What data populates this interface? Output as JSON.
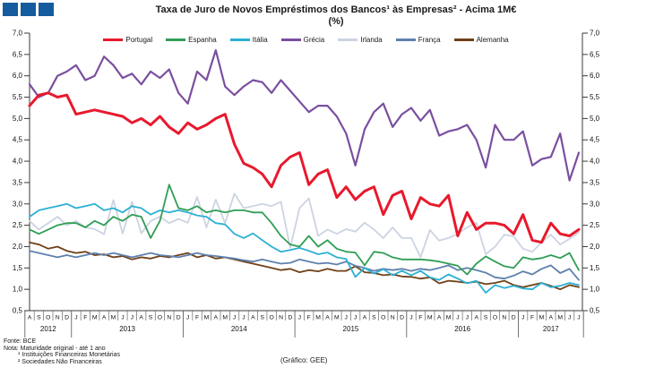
{
  "logo": {
    "color": "#155b9e",
    "squares": 3
  },
  "title": "Taxa de Juro de Novos Empréstimos dos Bancos¹ às Empresas² - Acima 1M€",
  "subtitle": "(%)",
  "footer": {
    "lines": [
      "Fonte: BCE",
      "Nota: Maturidade original - até 1 ano",
      "¹ Instituições Financeiras Monetárias",
      "² Sociedades Não Financeiras"
    ],
    "credit": "(Gráfico: GEE)"
  },
  "chart_data": {
    "type": "line",
    "title": "Taxa de Juro de Novos Empréstimos dos Bancos às Empresas - Acima 1M€",
    "subtitle": "(%)",
    "xlabel": "",
    "ylabel": "",
    "ylim": [
      0.5,
      7.0
    ],
    "ytick_step": 0.5,
    "ytick_labels": [
      "0,5",
      "1,0",
      "1,5",
      "2,0",
      "2,5",
      "3,0",
      "3,5",
      "4,0",
      "4,5",
      "5,0",
      "5,5",
      "6,0",
      "6,5",
      "7,0"
    ],
    "grid": false,
    "legend_position": "top",
    "x_months": [
      "A",
      "S",
      "O",
      "N",
      "D",
      "J",
      "F",
      "M",
      "A",
      "M",
      "J",
      "J",
      "A",
      "S",
      "O",
      "N",
      "D",
      "J",
      "F",
      "M",
      "A",
      "M",
      "J",
      "J",
      "A",
      "S",
      "O",
      "N",
      "D",
      "J",
      "F",
      "M",
      "A",
      "M",
      "J",
      "J",
      "A",
      "S",
      "O",
      "N",
      "D",
      "J",
      "F",
      "M",
      "A",
      "M",
      "J",
      "J",
      "A",
      "S",
      "O",
      "N",
      "D",
      "J",
      "F",
      "M",
      "A",
      "M",
      "J",
      "J"
    ],
    "x_years": [
      {
        "label": "2012",
        "start": 0,
        "end": 4
      },
      {
        "label": "2013",
        "start": 5,
        "end": 16
      },
      {
        "label": "2014",
        "start": 17,
        "end": 28
      },
      {
        "label": "2015",
        "start": 29,
        "end": 40
      },
      {
        "label": "2016",
        "start": 41,
        "end": 52
      },
      {
        "label": "2017",
        "start": 53,
        "end": 59
      }
    ],
    "series": [
      {
        "name": "Portugal",
        "color": "#e8192c",
        "line_width": 3,
        "values": [
          5.3,
          5.55,
          5.6,
          5.5,
          5.55,
          5.1,
          5.15,
          5.2,
          5.15,
          5.1,
          5.05,
          4.9,
          5.0,
          4.85,
          5.05,
          4.8,
          4.65,
          4.9,
          4.75,
          4.85,
          5.0,
          5.1,
          4.4,
          3.95,
          3.85,
          3.7,
          3.4,
          3.9,
          4.1,
          4.2,
          3.45,
          3.7,
          3.8,
          3.15,
          3.4,
          3.1,
          3.3,
          3.4,
          2.75,
          3.2,
          3.3,
          2.65,
          3.15,
          3.0,
          2.95,
          3.2,
          2.25,
          2.8,
          2.4,
          2.55,
          2.55,
          2.5,
          2.3,
          2.75,
          2.15,
          2.1,
          2.55,
          2.3,
          2.25,
          2.4
        ]
      },
      {
        "name": "Espanha",
        "color": "#2f9e55",
        "line_width": 1.8,
        "values": [
          2.4,
          2.3,
          2.4,
          2.5,
          2.55,
          2.55,
          2.45,
          2.6,
          2.5,
          2.7,
          2.6,
          2.75,
          2.7,
          2.2,
          2.6,
          3.45,
          2.9,
          2.85,
          2.95,
          2.8,
          2.85,
          2.8,
          2.85,
          2.85,
          2.8,
          2.8,
          2.55,
          2.25,
          2.05,
          2.0,
          2.25,
          2.0,
          2.15,
          1.95,
          1.88,
          1.86,
          1.56,
          1.88,
          1.85,
          1.75,
          1.7,
          1.7,
          1.7,
          1.68,
          1.65,
          1.6,
          1.55,
          1.35,
          1.6,
          1.77,
          1.65,
          1.54,
          1.5,
          1.75,
          1.7,
          1.73,
          1.8,
          1.73,
          1.85,
          1.45
        ]
      },
      {
        "name": "Itália",
        "color": "#2cb0d4",
        "line_width": 1.8,
        "values": [
          2.7,
          2.85,
          2.9,
          2.95,
          3.0,
          2.9,
          2.95,
          3.0,
          2.85,
          2.9,
          2.8,
          2.95,
          2.9,
          2.75,
          2.85,
          2.8,
          2.85,
          2.8,
          2.73,
          2.7,
          2.55,
          2.52,
          2.3,
          2.2,
          2.31,
          2.15,
          2.0,
          1.88,
          1.92,
          1.97,
          1.9,
          1.82,
          1.86,
          1.75,
          1.71,
          1.29,
          1.5,
          1.37,
          1.47,
          1.33,
          1.43,
          1.33,
          1.43,
          1.28,
          1.22,
          1.35,
          1.25,
          1.14,
          1.2,
          0.92,
          1.1,
          1.03,
          1.08,
          1.02,
          1.0,
          1.15,
          1.05,
          1.08,
          1.15,
          1.1
        ]
      },
      {
        "name": "Grécia",
        "color": "#7a4fa0",
        "line_width": 2.2,
        "values": [
          5.8,
          5.5,
          5.6,
          6.0,
          6.1,
          6.25,
          5.9,
          6.0,
          6.45,
          6.25,
          5.95,
          6.05,
          5.8,
          6.1,
          5.95,
          6.15,
          5.6,
          5.35,
          6.1,
          5.9,
          6.6,
          5.75,
          5.55,
          5.75,
          5.9,
          5.85,
          5.6,
          5.9,
          5.65,
          5.4,
          5.15,
          5.3,
          5.3,
          5.05,
          4.65,
          3.9,
          4.75,
          5.15,
          5.35,
          4.8,
          5.1,
          5.25,
          4.95,
          5.2,
          4.6,
          4.7,
          4.75,
          4.85,
          4.5,
          3.85,
          4.85,
          4.5,
          4.5,
          4.7,
          3.9,
          4.05,
          4.1,
          4.65,
          3.55,
          4.2
        ]
      },
      {
        "name": "Irlanda",
        "color": "#ccd3e2",
        "line_width": 1.8,
        "values": [
          2.6,
          2.4,
          2.55,
          2.7,
          2.5,
          2.6,
          2.45,
          2.41,
          2.29,
          3.09,
          2.31,
          3.05,
          2.31,
          2.6,
          2.7,
          2.55,
          2.65,
          2.56,
          3.16,
          2.45,
          3.1,
          2.55,
          3.24,
          2.9,
          2.95,
          3.0,
          2.95,
          3.05,
          1.97,
          2.9,
          3.13,
          2.25,
          2.4,
          2.3,
          2.41,
          2.35,
          2.56,
          2.4,
          2.2,
          2.45,
          2.2,
          2.2,
          1.75,
          2.39,
          2.14,
          2.2,
          2.3,
          2.45,
          2.56,
          1.82,
          2.0,
          2.28,
          2.24,
          1.95,
          1.88,
          2.1,
          2.28,
          2.05,
          2.18,
          2.33
        ]
      },
      {
        "name": "França",
        "color": "#5e81ad",
        "line_width": 1.8,
        "values": [
          1.9,
          1.85,
          1.8,
          1.75,
          1.8,
          1.75,
          1.8,
          1.85,
          1.8,
          1.85,
          1.8,
          1.75,
          1.8,
          1.85,
          1.8,
          1.78,
          1.75,
          1.8,
          1.85,
          1.8,
          1.78,
          1.75,
          1.72,
          1.68,
          1.65,
          1.7,
          1.65,
          1.6,
          1.62,
          1.7,
          1.65,
          1.6,
          1.62,
          1.58,
          1.65,
          1.55,
          1.5,
          1.43,
          1.48,
          1.45,
          1.48,
          1.43,
          1.48,
          1.45,
          1.5,
          1.56,
          1.45,
          1.5,
          1.45,
          1.39,
          1.28,
          1.25,
          1.32,
          1.42,
          1.35,
          1.48,
          1.56,
          1.38,
          1.48,
          1.22
        ]
      },
      {
        "name": "Alemanha",
        "color": "#6f4118",
        "line_width": 1.8,
        "values": [
          2.1,
          2.05,
          1.95,
          2.0,
          1.9,
          1.85,
          1.88,
          1.8,
          1.82,
          1.75,
          1.78,
          1.7,
          1.75,
          1.72,
          1.78,
          1.75,
          1.8,
          1.85,
          1.75,
          1.8,
          1.72,
          1.75,
          1.7,
          1.65,
          1.6,
          1.55,
          1.5,
          1.45,
          1.48,
          1.4,
          1.45,
          1.42,
          1.48,
          1.43,
          1.43,
          1.54,
          1.4,
          1.38,
          1.33,
          1.35,
          1.3,
          1.29,
          1.25,
          1.28,
          1.14,
          1.2,
          1.18,
          1.15,
          1.18,
          1.12,
          1.15,
          1.2,
          1.1,
          1.05,
          1.1,
          1.15,
          1.08,
          1.0,
          1.1,
          1.05
        ]
      }
    ]
  }
}
